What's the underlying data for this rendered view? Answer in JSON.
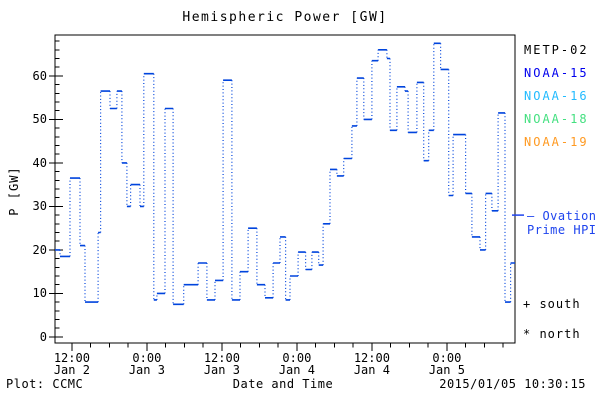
{
  "title": "Hemispheric Power [GW]",
  "footer": {
    "credit": "Plot: CCMC",
    "xlabel": "Date and Time",
    "timestamp": "2015/01/05 10:30:15"
  },
  "legend": {
    "items": [
      {
        "label": "METP-02",
        "color": "#000000"
      },
      {
        "label": "NOAA-15",
        "color": "#0000ee"
      },
      {
        "label": "NOAA-16",
        "color": "#22bbff"
      },
      {
        "label": "NOAA-18",
        "color": "#44e080"
      },
      {
        "label": "NOAA-19",
        "color": "#ff9a22"
      }
    ]
  },
  "annotations": {
    "ovation_line1": "— Ovation",
    "ovation_line2": "Prime HPI",
    "ovation_color": "#1e44ee",
    "south": "+ south",
    "north": "* north"
  },
  "chart_data": {
    "type": "line",
    "subtype": "step-histogram-dotted",
    "title": "Hemispheric Power [GW]",
    "xlabel": "Date and Time",
    "ylabel": "P [GW]",
    "x_axis": {
      "unit": "hours since 2015-01-02 00:00",
      "domain": [
        9.3,
        82.9
      ],
      "minor_tick_hours": 3,
      "ticks": [
        {
          "hour": 12,
          "time": "12:00",
          "date": "Jan 2"
        },
        {
          "hour": 24,
          "time": "0:00",
          "date": "Jan 3"
        },
        {
          "hour": 36,
          "time": "12:00",
          "date": "Jan 3"
        },
        {
          "hour": 48,
          "time": "0:00",
          "date": "Jan 4"
        },
        {
          "hour": 60,
          "time": "12:00",
          "date": "Jan 4"
        },
        {
          "hour": 72,
          "time": "0:00",
          "date": "Jan 5"
        }
      ]
    },
    "y_axis": {
      "label": "P [GW]",
      "domain": [
        -1.4,
        69.4
      ],
      "major_tick_step": 10,
      "major_tick_max": 60,
      "minor_tick_step": 2,
      "grid": false
    },
    "series": [
      {
        "name": "hemispheric-power",
        "color": "#0044dd",
        "end_hour": 82.9,
        "steps": [
          [
            9.3,
            20
          ],
          [
            10.1,
            18.5
          ],
          [
            11.7,
            36.5
          ],
          [
            13.3,
            21
          ],
          [
            14.1,
            8
          ],
          [
            16.2,
            24
          ],
          [
            16.6,
            56.5
          ],
          [
            18.1,
            52.5
          ],
          [
            19.2,
            56.5
          ],
          [
            20.0,
            40
          ],
          [
            20.8,
            30
          ],
          [
            21.4,
            35
          ],
          [
            22.9,
            30
          ],
          [
            23.5,
            60.5
          ],
          [
            25.1,
            8.5
          ],
          [
            25.6,
            10
          ],
          [
            26.9,
            52.5
          ],
          [
            28.2,
            7.5
          ],
          [
            29.9,
            12
          ],
          [
            32.2,
            17
          ],
          [
            33.6,
            8.5
          ],
          [
            34.9,
            13
          ],
          [
            36.2,
            59
          ],
          [
            37.6,
            8.5
          ],
          [
            38.9,
            15
          ],
          [
            40.2,
            25
          ],
          [
            41.6,
            12
          ],
          [
            42.9,
            9
          ],
          [
            44.2,
            17
          ],
          [
            45.3,
            23
          ],
          [
            46.2,
            8.5
          ],
          [
            46.9,
            14
          ],
          [
            48.2,
            19.5
          ],
          [
            49.4,
            15.5
          ],
          [
            50.4,
            19.5
          ],
          [
            51.5,
            16.5
          ],
          [
            52.2,
            26
          ],
          [
            53.3,
            38.5
          ],
          [
            54.4,
            37
          ],
          [
            55.5,
            41
          ],
          [
            56.8,
            48.5
          ],
          [
            57.6,
            59.5
          ],
          [
            58.7,
            50
          ],
          [
            60.0,
            63.5
          ],
          [
            61.0,
            66
          ],
          [
            62.4,
            64
          ],
          [
            62.9,
            47.5
          ],
          [
            64.0,
            57.5
          ],
          [
            65.3,
            56.5
          ],
          [
            65.8,
            47
          ],
          [
            67.2,
            58.5
          ],
          [
            68.3,
            40.5
          ],
          [
            69.1,
            47.5
          ],
          [
            69.9,
            67.5
          ],
          [
            71.0,
            61.5
          ],
          [
            72.3,
            32.5
          ],
          [
            73.0,
            46.5
          ],
          [
            75.0,
            33
          ],
          [
            76.0,
            23
          ],
          [
            77.3,
            20
          ],
          [
            78.2,
            33
          ],
          [
            79.2,
            29
          ],
          [
            80.2,
            51.5
          ],
          [
            81.3,
            8
          ],
          [
            82.2,
            17
          ]
        ]
      }
    ],
    "ovation_marker": {
      "value": 28,
      "color": "#1e44ee"
    },
    "legend_position": "right"
  }
}
